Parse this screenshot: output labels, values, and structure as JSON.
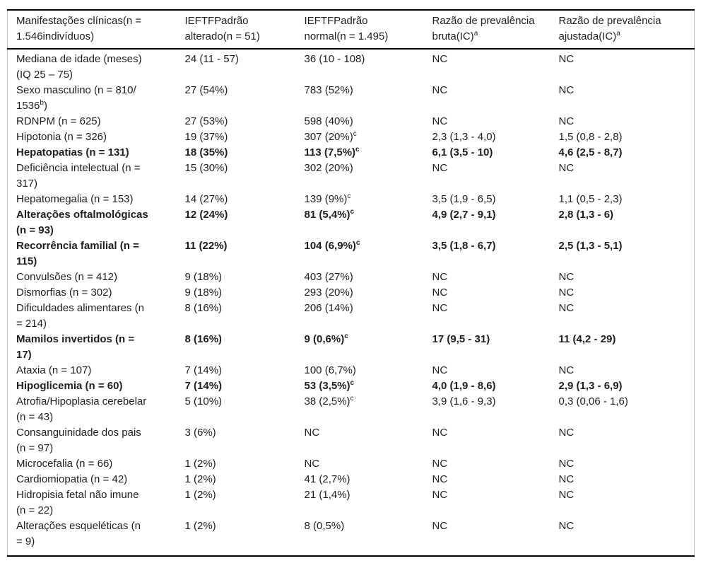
{
  "colors": {
    "text": "#1f1f1f",
    "rule": "#000000",
    "side_border": "#c3c3c3",
    "background": "#ffffff"
  },
  "table": {
    "columns": [
      "Manifestações clínicas(n =\n1.546indivíduos)",
      "IEFTFPadrão\nalterado(n = 51)",
      "IEFTFPadrão\nnormal(n = 1.495)",
      "Razão de prevalência\nbruta(IC)^a^",
      "Razão de prevalência\najustada(IC)^a^"
    ],
    "rows": [
      {
        "bold": false,
        "cells": [
          "Mediana de idade (meses)\n(IQ 25 – 75)",
          "24 (11 - 57)",
          "36 (10 - 108)",
          "NC",
          "NC"
        ]
      },
      {
        "bold": false,
        "cells": [
          "Sexo masculino (n = 810/\n1536^b^)",
          "27 (54%)",
          "783 (52%)",
          "NC",
          "NC"
        ]
      },
      {
        "bold": false,
        "cells": [
          "RDNPM (n = 625)",
          "27 (53%)",
          "598 (40%)",
          "NC",
          "NC"
        ]
      },
      {
        "bold": false,
        "cells": [
          "Hipotonia (n = 326)",
          "19 (37%)",
          "307 (20%)^c^",
          "2,3 (1,3 - 4,0)",
          "1,5 (0,8 - 2,8)"
        ]
      },
      {
        "bold": true,
        "cells": [
          "Hepatopatias (n = 131)",
          "18 (35%)",
          "113 (7,5%)^c^",
          "6,1 (3,5 - 10)",
          "4,6 (2,5 - 8,7)"
        ]
      },
      {
        "bold": false,
        "cells": [
          "Deficiência intelectual (n =\n317)",
          "15 (30%)",
          "302 (20%)",
          "NC",
          "NC"
        ]
      },
      {
        "bold": false,
        "cells": [
          "Hepatomegalia (n = 153)",
          "14 (27%)",
          "139 (9%)^c^",
          "3,5 (1,9 - 6,5)",
          "1,1 (0,5 - 2,3)"
        ]
      },
      {
        "bold": true,
        "cells": [
          "Alterações oftalmológicas\n(n = 93)",
          "12 (24%)",
          "81 (5,4%)^c^",
          "4,9 (2,7 - 9,1)",
          "2,8 (1,3 - 6)"
        ]
      },
      {
        "bold": true,
        "cells": [
          "Recorrência familial (n =\n115)",
          "11 (22%)",
          "104 (6,9%)^c^",
          "3,5 (1,8 - 6,7)",
          "2,5 (1,3 - 5,1)"
        ]
      },
      {
        "bold": false,
        "cells": [
          "Convulsões (n = 412)",
          "9 (18%)",
          "403 (27%)",
          "NC",
          "NC"
        ]
      },
      {
        "bold": false,
        "cells": [
          "Dismorfias (n = 302)",
          "9 (18%)",
          "293 (20%)",
          "NC",
          "NC"
        ]
      },
      {
        "bold": false,
        "cells": [
          "Dificuldades alimentares (n\n= 214)",
          "8 (16%)",
          "206 (14%)",
          "NC",
          "NC"
        ]
      },
      {
        "bold": true,
        "cells": [
          "Mamilos invertidos (n =\n17)",
          "8 (16%)",
          "9 (0,6%)^c^",
          "17 (9,5 - 31)",
          "11 (4,2 - 29)"
        ]
      },
      {
        "bold": false,
        "cells": [
          "Ataxia (n = 107)",
          "7 (14%)",
          "100 (6,7%)",
          "NC",
          "NC"
        ]
      },
      {
        "bold": true,
        "cells": [
          "Hipoglicemia (n = 60)",
          "7 (14%)",
          "53 (3,5%)^c^",
          "4,0 (1,9 - 8,6)",
          "2,9 (1,3 - 6,9)"
        ]
      },
      {
        "bold": false,
        "cells": [
          "Atrofia/Hipoplasia cerebelar\n(n = 43)",
          "5 (10%)",
          "38 (2,5%)^c^",
          "3,9 (1,6 - 9,3)",
          "0,3 (0,06 - 1,6)"
        ]
      },
      {
        "bold": false,
        "cells": [
          "Consanguinidade dos pais\n(n = 97)",
          "3 (6%)",
          "NC",
          "NC",
          "NC"
        ]
      },
      {
        "bold": false,
        "cells": [
          "Microcefalia (n = 66)",
          "1 (2%)",
          "NC",
          "NC",
          "NC"
        ]
      },
      {
        "bold": false,
        "cells": [
          "Cardiomiopatia (n = 42)",
          "1 (2%)",
          "41 (2,7%)",
          "NC",
          "NC"
        ]
      },
      {
        "bold": false,
        "cells": [
          "Hidropisia fetal não imune\n(n = 22)",
          "1 (2%)",
          "21 (1,4%)",
          "NC",
          "NC"
        ]
      },
      {
        "bold": false,
        "cells": [
          "Alterações esqueléticas (n\n= 9)",
          "1 (2%)",
          "8 (0,5%)",
          "NC",
          "NC"
        ]
      }
    ]
  }
}
